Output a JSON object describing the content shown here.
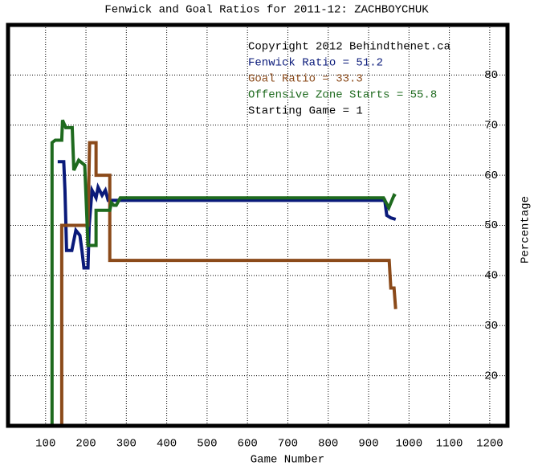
{
  "chart_data": {
    "type": "line",
    "title": "Fenwick and Goal Ratios for 2011-12: ZACHBOYCHUK",
    "x_label": "Game Number",
    "y_label": "Percentage",
    "annotations": [
      {
        "text": "Copyright 2012 Behindthenet.ca",
        "color": "#000000"
      },
      {
        "text": "Fenwick Ratio = 51.2",
        "color": "#0a1a7a"
      },
      {
        "text": "Goal Ratio = 33.3",
        "color": "#8b4a1a"
      },
      {
        "text": "Offensive Zone Starts = 55.8",
        "color": "#1e6a1e"
      },
      {
        "text": "Starting Game = 1",
        "color": "#000000"
      }
    ],
    "xlim": [
      7,
      1244
    ],
    "ylim": [
      10,
      90
    ],
    "xticks": [
      100,
      200,
      300,
      400,
      500,
      600,
      700,
      800,
      900,
      1000,
      1100,
      1200
    ],
    "yticks": [
      20,
      30,
      40,
      50,
      60,
      70,
      80
    ],
    "grid": true,
    "series": [
      {
        "color": "#0a1a7a",
        "x": [
          130,
          145,
          148,
          152,
          165,
          175,
          185,
          190,
          195,
          205,
          208,
          215,
          225,
          230,
          240,
          248,
          255,
          265,
          940,
          945,
          955,
          967
        ],
        "values": [
          62.7,
          62.7,
          57,
          45,
          45,
          49,
          48,
          45,
          41.5,
          41.5,
          50,
          57,
          55.5,
          57.6,
          56,
          57,
          55,
          55,
          55,
          52,
          51.5,
          51.2
        ]
      },
      {
        "color": "#8b4a1a",
        "x": [
          140,
          140,
          205,
          209,
          225,
          225,
          259,
          259,
          951,
          955,
          963,
          967
        ],
        "values": [
          10,
          50,
          50,
          66.5,
          66.5,
          60,
          60,
          43,
          43,
          37.5,
          37.5,
          33.3
        ]
      },
      {
        "color": "#1e6a1e",
        "x": [
          116,
          116,
          124,
          140,
          142,
          150,
          166,
          170,
          182,
          197,
          205,
          209,
          225,
          225,
          259,
          263,
          269,
          275,
          285,
          937,
          950,
          963,
          967
        ],
        "values": [
          10,
          66.5,
          67,
          67,
          71,
          69.5,
          69.5,
          61,
          63,
          62,
          46,
          46,
          46,
          53,
          53,
          54.5,
          54,
          54,
          55.5,
          55.5,
          53.5,
          56,
          55.8
        ]
      }
    ]
  }
}
